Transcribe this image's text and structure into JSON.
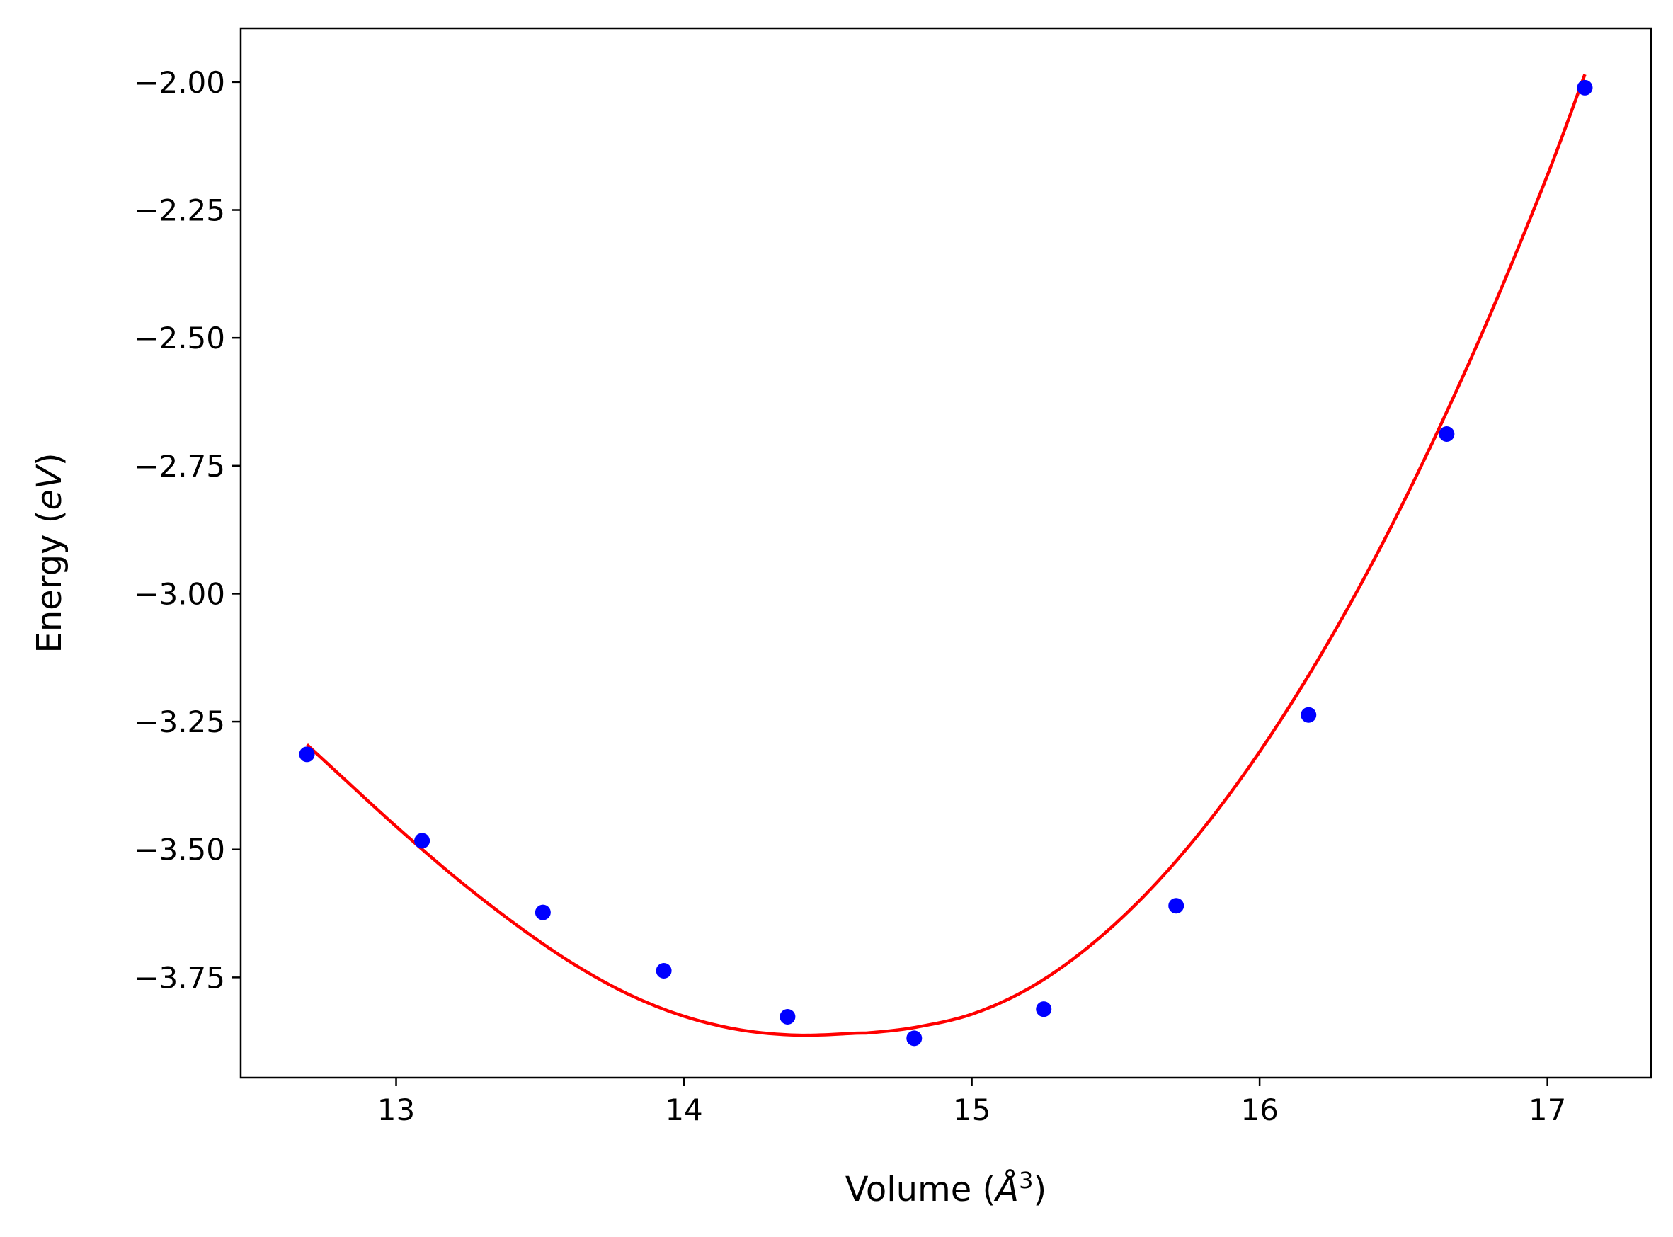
{
  "chart_data": {
    "type": "scatter",
    "title": "",
    "xlabel": {
      "prefix": "Volume (",
      "symbol": "Å",
      "sup": "3",
      "suffix": ")"
    },
    "ylabel": {
      "prefix": "Energy (",
      "symbol": "eV",
      "suffix": ")"
    },
    "xlim": [
      12.46,
      17.36
    ],
    "ylim": [
      -3.946,
      -1.895
    ],
    "xticks": [
      13,
      14,
      15,
      16,
      17
    ],
    "xtick_labels": [
      "13",
      "14",
      "15",
      "16",
      "17"
    ],
    "yticks": [
      -2.0,
      -2.25,
      -2.5,
      -2.75,
      -3.0,
      -3.25,
      -3.5,
      -3.75
    ],
    "ytick_labels": [
      "−2.00",
      "−2.25",
      "−2.50",
      "−2.75",
      "−3.00",
      "−3.25",
      "−3.50",
      "−3.75"
    ],
    "grid": false,
    "series": [
      {
        "kind": "points",
        "color": "#0000ff",
        "x": [
          12.69,
          13.09,
          13.51,
          13.93,
          14.36,
          14.8,
          15.25,
          15.71,
          16.17,
          16.65,
          17.13
        ],
        "y": [
          -3.314,
          -3.483,
          -3.623,
          -3.737,
          -3.827,
          -3.869,
          -3.812,
          -3.61,
          -3.237,
          -2.688,
          -2.011
        ]
      },
      {
        "kind": "line",
        "color": "#ff0000",
        "x": [
          12.69,
          12.8,
          13.0,
          13.2,
          13.4,
          13.6,
          13.8,
          14.0,
          14.2,
          14.4,
          14.6,
          14.65,
          14.8,
          15.0,
          15.2,
          15.4,
          15.6,
          15.8,
          16.0,
          16.2,
          16.4,
          16.6,
          16.8,
          17.0,
          17.13
        ],
        "y": [
          -3.295,
          -3.352,
          -3.455,
          -3.552,
          -3.64,
          -3.718,
          -3.781,
          -3.826,
          -3.853,
          -3.863,
          -3.859,
          -3.858,
          -3.848,
          -3.822,
          -3.771,
          -3.693,
          -3.59,
          -3.462,
          -3.309,
          -3.132,
          -2.931,
          -2.705,
          -2.456,
          -2.182,
          -1.985
        ]
      }
    ]
  }
}
